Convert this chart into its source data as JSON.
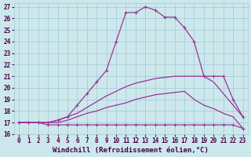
{
  "background_color": "#cde8ec",
  "grid_color": "#9ec8d0",
  "line_color": "#993399",
  "xlabel": "Windchill (Refroidissement éolien,°C)",
  "xlim": [
    -0.5,
    23.5
  ],
  "ylim": [
    16,
    27.3
  ],
  "xticks": [
    0,
    1,
    2,
    3,
    4,
    5,
    6,
    7,
    8,
    9,
    10,
    11,
    12,
    13,
    14,
    15,
    16,
    17,
    18,
    19,
    20,
    21,
    22,
    23
  ],
  "yticks": [
    16,
    17,
    18,
    19,
    20,
    21,
    22,
    23,
    24,
    25,
    26,
    27
  ],
  "curve1_x": [
    0,
    1,
    2,
    3,
    4,
    5,
    6,
    7,
    8,
    9,
    10,
    11,
    12,
    13,
    14,
    15,
    16,
    17,
    18,
    19,
    20,
    21,
    22,
    23
  ],
  "curve1_y": [
    17.0,
    17.0,
    17.0,
    16.8,
    16.8,
    16.8,
    16.8,
    16.8,
    16.8,
    16.8,
    16.8,
    16.8,
    16.8,
    16.8,
    16.8,
    16.8,
    16.8,
    16.8,
    16.8,
    16.8,
    16.8,
    16.8,
    16.8,
    16.5
  ],
  "curve2_x": [
    0,
    1,
    2,
    3,
    4,
    5,
    6,
    7,
    8,
    9,
    10,
    11,
    12,
    13,
    14,
    15,
    16,
    17,
    18,
    19,
    20,
    21,
    22,
    23
  ],
  "curve2_y": [
    17.0,
    17.0,
    17.0,
    17.0,
    17.0,
    17.2,
    17.5,
    17.8,
    18.0,
    18.3,
    18.5,
    18.7,
    19.0,
    19.2,
    19.4,
    19.5,
    19.6,
    19.7,
    19.0,
    18.5,
    18.2,
    17.8,
    17.5,
    16.5
  ],
  "curve3_x": [
    0,
    1,
    2,
    3,
    4,
    5,
    6,
    7,
    8,
    9,
    10,
    11,
    12,
    13,
    14,
    15,
    16,
    17,
    18,
    19,
    20,
    21,
    22,
    23
  ],
  "curve3_y": [
    17.0,
    17.0,
    17.0,
    17.0,
    17.2,
    17.5,
    17.8,
    18.3,
    18.8,
    19.3,
    19.7,
    20.1,
    20.4,
    20.6,
    20.8,
    20.9,
    21.0,
    21.0,
    21.0,
    21.0,
    20.5,
    19.5,
    18.5,
    17.5
  ],
  "curve4_x": [
    0,
    1,
    2,
    3,
    4,
    5,
    6,
    7,
    8,
    9,
    10,
    11,
    12,
    13,
    14,
    15,
    16,
    17,
    18,
    19,
    20,
    21,
    22,
    23
  ],
  "curve4_y": [
    17.0,
    17.0,
    17.0,
    17.0,
    17.2,
    17.5,
    18.5,
    19.5,
    20.5,
    21.5,
    24.0,
    26.5,
    26.5,
    27.0,
    26.7,
    26.1,
    26.1,
    25.2,
    24.0,
    21.0,
    21.0,
    21.0,
    19.0,
    17.5
  ],
  "tick_fontsize": 5.5,
  "xlabel_fontsize": 6.5,
  "linewidth": 0.9,
  "marker": "+",
  "marker_size": 3.5
}
